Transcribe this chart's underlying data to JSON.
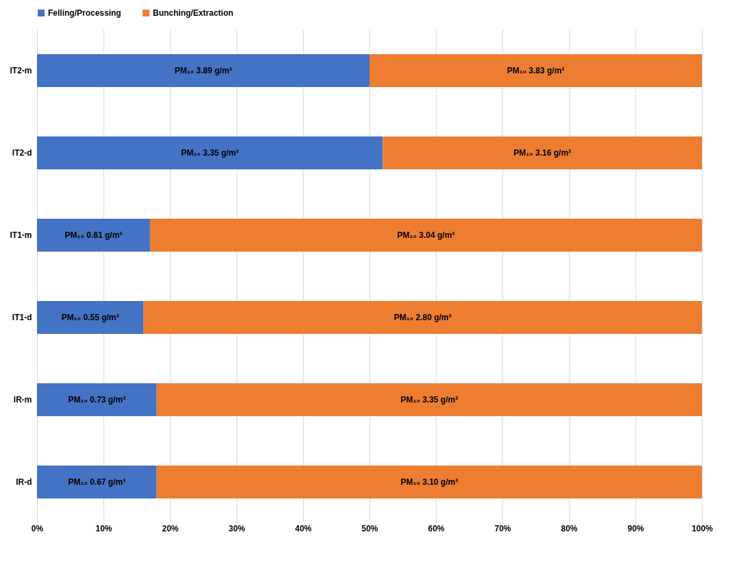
{
  "chart_data": {
    "type": "bar",
    "orientation": "horizontal",
    "stacked": true,
    "categories": [
      "IT2-m",
      "IT2-d",
      "IT1-m",
      "IT1-d",
      "IR-m",
      "IR-d"
    ],
    "series": [
      {
        "name": "Felling/Processing",
        "color": "#4472c4",
        "values": [
          50,
          52,
          17,
          16,
          18,
          18
        ],
        "value_labels": [
          "PM₁₀ 3.89 g/m³",
          "PM₁₀ 3.35 g/m³",
          "PM₁₀ 0.61 g/m³",
          "PM₁₀ 0.55 g/m³",
          "PM₁₀ 0.73 g/m³",
          "PM₁₀ 0.67 g/m³"
        ]
      },
      {
        "name": "Bunching/Extraction",
        "color": "#ed7d31",
        "values": [
          50,
          48,
          83,
          84,
          82,
          82
        ],
        "value_labels": [
          "PM₁₀ 3.83 g/m³",
          "PM₁₀ 3.16 g/m³",
          "PM₁₀ 3.04 g/m³",
          "PM₁₀ 2.80 g/m³",
          "PM₁₀ 3.35 g/m³",
          "PM₁₀ 3.10 g/m³"
        ]
      }
    ],
    "xlim": [
      0,
      100
    ],
    "xticks": [
      {
        "value": 0,
        "label": "0%"
      },
      {
        "value": 10,
        "label": "10%"
      },
      {
        "value": 20,
        "label": "20%"
      },
      {
        "value": 30,
        "label": "30%"
      },
      {
        "value": 40,
        "label": "40%"
      },
      {
        "value": 50,
        "label": "50%"
      },
      {
        "value": 60,
        "label": "60%"
      },
      {
        "value": 70,
        "label": "70%"
      },
      {
        "value": 80,
        "label": "80%"
      },
      {
        "value": 90,
        "label": "90%"
      },
      {
        "value": 100,
        "label": "100%"
      }
    ],
    "grid": "x",
    "legend": "top"
  }
}
